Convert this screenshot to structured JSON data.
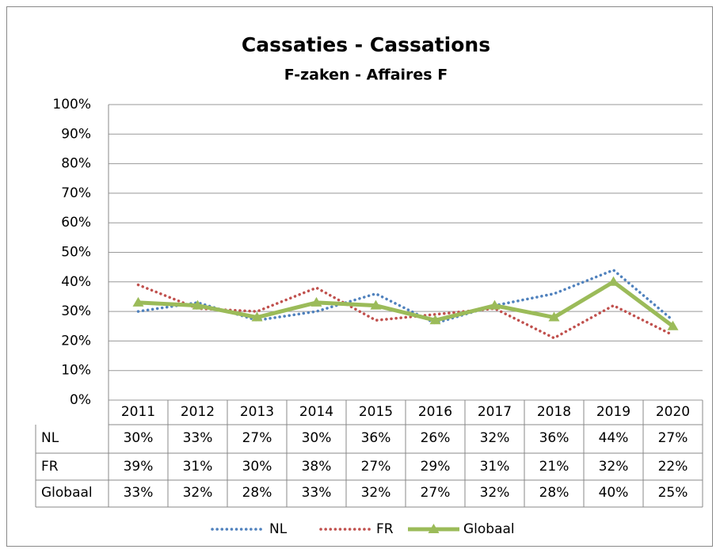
{
  "chart_data": {
    "type": "line",
    "title": "Cassaties - Cassations",
    "subtitle": "F-zaken - Affaires F",
    "categories": [
      "2011",
      "2012",
      "2013",
      "2014",
      "2015",
      "2016",
      "2017",
      "2018",
      "2019",
      "2020"
    ],
    "series": [
      {
        "name": "NL",
        "color": "#4f81bd",
        "style": "dotted",
        "values": [
          30,
          33,
          27,
          30,
          36,
          26,
          32,
          36,
          44,
          27
        ],
        "value_labels": [
          "30%",
          "33%",
          "27%",
          "30%",
          "36%",
          "26%",
          "32%",
          "36%",
          "44%",
          "27%"
        ]
      },
      {
        "name": "FR",
        "color": "#c0504d",
        "style": "dotted",
        "values": [
          39,
          31,
          30,
          38,
          27,
          29,
          31,
          21,
          32,
          22
        ],
        "value_labels": [
          "39%",
          "31%",
          "30%",
          "38%",
          "27%",
          "29%",
          "31%",
          "21%",
          "32%",
          "22%"
        ]
      },
      {
        "name": "Globaal",
        "color": "#9bbb59",
        "style": "solid",
        "marker": "triangle",
        "values": [
          33,
          32,
          28,
          33,
          32,
          27,
          32,
          28,
          40,
          25
        ],
        "value_labels": [
          "33%",
          "32%",
          "28%",
          "33%",
          "32%",
          "27%",
          "32%",
          "28%",
          "40%",
          "25%"
        ]
      }
    ],
    "ylim": [
      0,
      100
    ],
    "yticks": [
      {
        "value": 0,
        "label": "0%"
      },
      {
        "value": 10,
        "label": "10%"
      },
      {
        "value": 20,
        "label": "20%"
      },
      {
        "value": 30,
        "label": "30%"
      },
      {
        "value": 40,
        "label": "40%"
      },
      {
        "value": 50,
        "label": "50%"
      },
      {
        "value": 60,
        "label": "60%"
      },
      {
        "value": 70,
        "label": "70%"
      },
      {
        "value": 80,
        "label": "80%"
      },
      {
        "value": 90,
        "label": "90%"
      },
      {
        "value": 100,
        "label": "100%"
      }
    ],
    "grid": true,
    "legend": "bottom"
  }
}
